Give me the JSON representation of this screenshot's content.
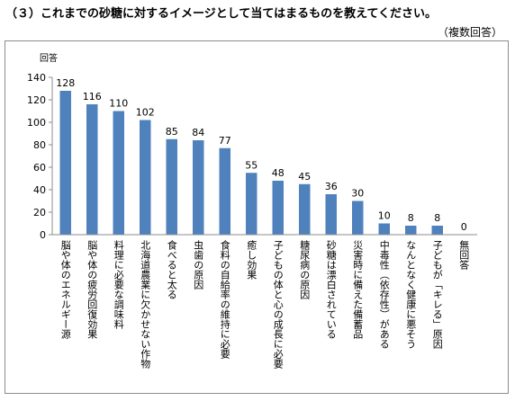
{
  "title": "（３）これまでの砂糖に対するイメージとして当てはまるものを教えてください。",
  "note": "（複数回答）",
  "chart_data": {
    "type": "bar",
    "ylabel": "回答",
    "ylim": [
      0,
      140
    ],
    "yticks": [
      0,
      20,
      40,
      60,
      80,
      100,
      120,
      140
    ],
    "grid": false,
    "bar_color": "#4f81bd",
    "categories": [
      "脳や体のエネルギー源",
      "脳や体の疲労回復効果",
      "料理に必要な調味料",
      "北海道農業に欠かせない作物",
      "食べると太る",
      "虫歯の原因",
      "食料の自給率の維持に必要",
      "癒し効果",
      "子どもの体と心の成長に必要",
      "糖尿病の原因",
      "砂糖は漂白されている",
      "災害時に備えた備蓄品",
      "中毒性（依存性）がある",
      "なんとなく健康に悪そう",
      "子どもが「キレる」原因",
      "無回答"
    ],
    "values": [
      128,
      116,
      110,
      102,
      85,
      84,
      77,
      55,
      48,
      45,
      36,
      30,
      10,
      8,
      8,
      0
    ]
  }
}
